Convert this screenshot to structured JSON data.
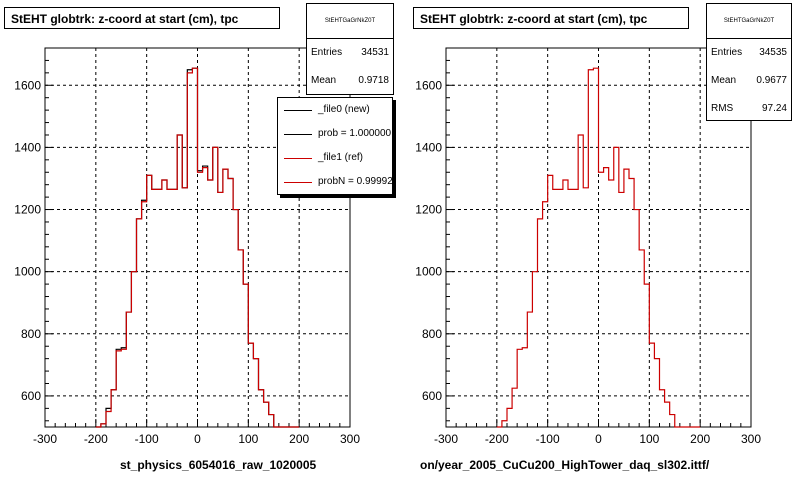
{
  "colors": {
    "new": "#000000",
    "ref": "#cc0000",
    "grid": "#000000"
  },
  "footer": "",
  "panels": [
    {
      "title": "StEHT globtrk: z-coord at start (cm), tpc",
      "stats": {
        "name": "StEHTGaGrNkZ0T",
        "rows": [
          {
            "key": "Entries",
            "value": "34531"
          },
          {
            "key": "Mean",
            "value": "0.9718"
          }
        ]
      },
      "legend": [
        {
          "label": "_file0 (new)",
          "color": "#000000"
        },
        {
          "label": "prob = 1.000000",
          "color": "#000000"
        },
        {
          "label": "_file1 (ref)",
          "color": "#cc0000"
        },
        {
          "label": "probN = 0.99992",
          "color": "#cc0000"
        }
      ],
      "xlabel": "st_physics_6054016_raw_1020005"
    },
    {
      "title": "StEHT globtrk: z-coord at start (cm), tpc",
      "stats": {
        "name": "StEHTGaGrNkZ0T",
        "rows": [
          {
            "key": "Entries",
            "value": "34535"
          },
          {
            "key": "Mean",
            "value": "0.9677"
          },
          {
            "key": "RMS",
            "value": "97.24"
          }
        ]
      },
      "legend": [],
      "xlabel": "on/year_2005_CuCu200_HighTower_daq_sl302.ittf/"
    }
  ],
  "chart_data": [
    {
      "type": "step-histogram",
      "title": "StEHT globtrk: z-coord at start (cm), tpc",
      "xlabel": "st_physics_6054016_raw_1020005",
      "ylabel": "",
      "xlim": [
        -300,
        300
      ],
      "ylim": [
        500,
        1720
      ],
      "xticks": [
        -300,
        -200,
        -100,
        0,
        100,
        200,
        300
      ],
      "yticks": [
        600,
        800,
        1000,
        1200,
        1400,
        1600
      ],
      "grid": true,
      "bin_edges": [
        -200,
        -190,
        -180,
        -170,
        -160,
        -150,
        -140,
        -130,
        -120,
        -110,
        -100,
        -90,
        -80,
        -70,
        -60,
        -50,
        -40,
        -30,
        -20,
        -10,
        0,
        10,
        20,
        30,
        40,
        50,
        60,
        70,
        80,
        90,
        100,
        110,
        120,
        130,
        140,
        150,
        160,
        170,
        180,
        190
      ],
      "series": [
        {
          "name": "_file0 (new)",
          "color": "#000000",
          "values": [
            490,
            510,
            560,
            620,
            750,
            755,
            870,
            1000,
            1170,
            1230,
            1310,
            1265,
            1265,
            1295,
            1265,
            1265,
            1440,
            1270,
            1650,
            1655,
            1325,
            1340,
            1295,
            1400,
            1255,
            1330,
            1300,
            1200,
            1070,
            960,
            770,
            720,
            620,
            580,
            540,
            490,
            480,
            470,
            460
          ]
        },
        {
          "name": "_file1 (ref)",
          "color": "#cc0000",
          "values": [
            490,
            510,
            550,
            620,
            745,
            750,
            870,
            1000,
            1170,
            1225,
            1310,
            1265,
            1265,
            1295,
            1265,
            1265,
            1440,
            1270,
            1640,
            1655,
            1320,
            1335,
            1295,
            1400,
            1255,
            1330,
            1300,
            1200,
            1070,
            960,
            770,
            720,
            620,
            580,
            540,
            490,
            480,
            470,
            460
          ]
        }
      ]
    },
    {
      "type": "step-histogram",
      "title": "StEHT globtrk: z-coord at start (cm), tpc",
      "xlabel": "on/year_2005_CuCu200_HighTower_daq_sl302.ittf/",
      "ylabel": "",
      "xlim": [
        -300,
        300
      ],
      "ylim": [
        500,
        1720
      ],
      "xticks": [
        -300,
        -200,
        -100,
        0,
        100,
        200,
        300
      ],
      "yticks": [
        600,
        800,
        1000,
        1200,
        1400,
        1600
      ],
      "grid": true,
      "bin_edges": [
        -200,
        -190,
        -180,
        -170,
        -160,
        -150,
        -140,
        -130,
        -120,
        -110,
        -100,
        -90,
        -80,
        -70,
        -60,
        -50,
        -40,
        -30,
        -20,
        -10,
        0,
        10,
        20,
        30,
        40,
        50,
        60,
        70,
        80,
        90,
        100,
        110,
        120,
        130,
        140,
        150,
        160,
        170,
        180,
        190
      ],
      "series": [
        {
          "name": "_file1 (ref)",
          "color": "#cc0000",
          "values": [
            490,
            520,
            560,
            625,
            750,
            755,
            870,
            1000,
            1170,
            1225,
            1310,
            1265,
            1265,
            1295,
            1265,
            1265,
            1440,
            1270,
            1650,
            1655,
            1320,
            1335,
            1295,
            1400,
            1255,
            1330,
            1300,
            1200,
            1070,
            960,
            770,
            720,
            620,
            580,
            540,
            490,
            480,
            470,
            460
          ]
        }
      ]
    }
  ]
}
